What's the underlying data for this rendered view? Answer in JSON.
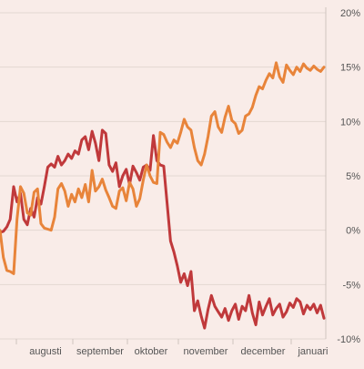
{
  "colors": {
    "background": "#f9ece8",
    "grid": "#e3d7d2",
    "series_red": "#c0393b",
    "series_orange": "#e8843a"
  },
  "chart_data": {
    "type": "line",
    "title": "",
    "xlabel": "",
    "ylabel": "",
    "x_tick_labels": [
      "augusti",
      "september",
      "oktober",
      "november",
      "december",
      "januari"
    ],
    "y_tick_labels": [
      "20%",
      "15%",
      "10%",
      "5%",
      "0%",
      "-5%",
      "-10%"
    ],
    "y_ticks": [
      20,
      15,
      10,
      5,
      0,
      -5,
      -10
    ],
    "ylim": [
      -10,
      20
    ],
    "grid": true,
    "legend": "none",
    "x_unit": "days",
    "series": [
      {
        "color": "#c0393b",
        "x": [
          0,
          2,
          4,
          6,
          8,
          10,
          12,
          14,
          16,
          18,
          20,
          22,
          24,
          26,
          28,
          30,
          32,
          34,
          36,
          38,
          40,
          42,
          44,
          46,
          48,
          50,
          52,
          54,
          56,
          58,
          60,
          62,
          64,
          66,
          68,
          70,
          72,
          74,
          76,
          78,
          80,
          82,
          84,
          86,
          88,
          90,
          92,
          94,
          96,
          98,
          100,
          102,
          104,
          106,
          108,
          110,
          112,
          114,
          116,
          118,
          120,
          122,
          124,
          126,
          128,
          130,
          132,
          134,
          136,
          138,
          140,
          142,
          144,
          146,
          148,
          150,
          152,
          154,
          156,
          158,
          160,
          162,
          164,
          166,
          168,
          170,
          172,
          174,
          176,
          178,
          180,
          182,
          184,
          186,
          188,
          190
        ],
        "values": [
          -0.2,
          -0.1,
          0.3,
          1.0,
          4.0,
          2.6,
          3.4,
          1.0,
          0.5,
          2.0,
          1.2,
          3.0,
          2.4,
          4.0,
          5.8,
          6.1,
          5.8,
          6.8,
          6.0,
          6.4,
          7.0,
          6.6,
          7.3,
          7.0,
          8.3,
          8.6,
          7.4,
          9.1,
          8.0,
          6.4,
          9.2,
          8.9,
          6.0,
          5.4,
          6.2,
          4.0,
          5.0,
          5.6,
          4.2,
          5.9,
          5.3,
          4.6,
          5.8,
          6.0,
          5.5,
          8.7,
          6.4,
          6.0,
          5.9,
          2.5,
          -1.0,
          -2.0,
          -3.3,
          -4.8,
          -4.0,
          -5.1,
          -3.8,
          -7.4,
          -6.5,
          -7.9,
          -9.0,
          -7.3,
          -6.0,
          -7.0,
          -7.5,
          -8.0,
          -7.2,
          -8.3,
          -7.4,
          -6.8,
          -8.2,
          -7.0,
          -7.4,
          -6.0,
          -7.6,
          -8.7,
          -6.6,
          -7.8,
          -7.0,
          -6.3,
          -7.8,
          -7.2,
          -6.8,
          -8.0,
          -7.5,
          -6.7,
          -7.1,
          -6.3,
          -6.6,
          -7.7,
          -6.9,
          -7.3,
          -6.8,
          -7.6,
          -6.9,
          -8.1
        ]
      },
      {
        "color": "#e8843a",
        "x": [
          0,
          2,
          4,
          6,
          8,
          10,
          12,
          14,
          16,
          18,
          20,
          22,
          24,
          26,
          28,
          30,
          32,
          34,
          36,
          38,
          40,
          42,
          44,
          46,
          48,
          50,
          52,
          54,
          56,
          58,
          60,
          62,
          64,
          66,
          68,
          70,
          72,
          74,
          76,
          78,
          80,
          82,
          84,
          86,
          88,
          90,
          92,
          94,
          96,
          98,
          100,
          102,
          104,
          106,
          108,
          110,
          112,
          114,
          116,
          118,
          120,
          122,
          124,
          126,
          128,
          130,
          132,
          134,
          136,
          138,
          140,
          142,
          144,
          146,
          148,
          150,
          152,
          154,
          156,
          158,
          160,
          162,
          164,
          166,
          168,
          170,
          172,
          174,
          176,
          178,
          180,
          182,
          184,
          186,
          188,
          190
        ],
        "values": [
          0.0,
          -2.5,
          -3.7,
          -3.8,
          -4.0,
          1.0,
          4.0,
          3.4,
          1.6,
          1.4,
          3.5,
          3.8,
          0.6,
          0.2,
          0.1,
          0.0,
          1.2,
          3.8,
          4.3,
          3.6,
          2.2,
          3.3,
          2.6,
          3.8,
          3.0,
          4.2,
          2.6,
          5.5,
          3.6,
          4.0,
          4.7,
          3.7,
          3.0,
          2.2,
          2.0,
          3.6,
          3.9,
          2.7,
          4.4,
          3.8,
          2.2,
          2.9,
          4.6,
          6.0,
          5.0,
          4.4,
          4.3,
          9.0,
          8.8,
          8.1,
          7.6,
          8.3,
          8.0,
          9.0,
          10.2,
          9.5,
          9.2,
          7.6,
          6.4,
          6.0,
          7.0,
          8.6,
          10.5,
          10.9,
          9.5,
          9.0,
          10.4,
          11.4,
          10.1,
          9.8,
          8.9,
          9.2,
          10.5,
          10.7,
          11.3,
          12.4,
          13.2,
          13.0,
          13.8,
          14.4,
          14.0,
          15.4,
          14.1,
          13.6,
          15.2,
          14.7,
          14.3,
          15.0,
          14.6,
          15.3,
          14.9,
          14.7,
          15.1,
          14.8,
          14.6,
          15.0
        ]
      }
    ]
  }
}
